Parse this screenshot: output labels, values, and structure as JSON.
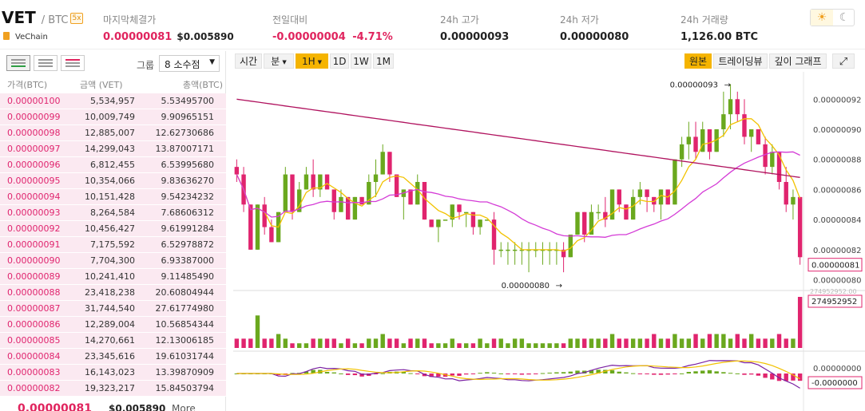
{
  "header": {
    "symbol": "VET",
    "quote": "/ BTC",
    "badge": "5x",
    "coin_name": "VeChain",
    "last_price_label": "마지막체결가",
    "last_price": "0.00000081",
    "last_price_usd": "$0.005890",
    "change_label": "전일대비",
    "change": "-0.00000004",
    "change_pct": "-4.71%",
    "high_label": "24h 고가",
    "high": "0.00000093",
    "low_label": "24h 저가",
    "low": "0.00000080",
    "volume_label": "24h 거래량",
    "volume": "1,126.00 BTC",
    "theme_light_icon": "sun-icon",
    "theme_dark_icon": "moon-icon"
  },
  "orderbook": {
    "group_label": "그룹",
    "group_value": "8 소수점",
    "col_price": "가격(BTC)",
    "col_amount": "금액 (VET)",
    "col_total": "총액(BTC)",
    "rows": [
      {
        "price": "0.00000100",
        "amount": "5,534,957",
        "total": "5.53495700"
      },
      {
        "price": "0.00000099",
        "amount": "10,009,749",
        "total": "9.90965151"
      },
      {
        "price": "0.00000098",
        "amount": "12,885,007",
        "total": "12.62730686"
      },
      {
        "price": "0.00000097",
        "amount": "14,299,043",
        "total": "13.87007171"
      },
      {
        "price": "0.00000096",
        "amount": "6,812,455",
        "total": "6.53995680"
      },
      {
        "price": "0.00000095",
        "amount": "10,354,066",
        "total": "9.83636270"
      },
      {
        "price": "0.00000094",
        "amount": "10,151,428",
        "total": "9.54234232"
      },
      {
        "price": "0.00000093",
        "amount": "8,264,584",
        "total": "7.68606312"
      },
      {
        "price": "0.00000092",
        "amount": "10,456,427",
        "total": "9.61991284"
      },
      {
        "price": "0.00000091",
        "amount": "7,175,592",
        "total": "6.52978872"
      },
      {
        "price": "0.00000090",
        "amount": "7,704,300",
        "total": "6.93387000"
      },
      {
        "price": "0.00000089",
        "amount": "10,241,410",
        "total": "9.11485490"
      },
      {
        "price": "0.00000088",
        "amount": "23,418,238",
        "total": "20.60804944"
      },
      {
        "price": "0.00000087",
        "amount": "31,744,540",
        "total": "27.61774980"
      },
      {
        "price": "0.00000086",
        "amount": "12,289,004",
        "total": "10.56854344"
      },
      {
        "price": "0.00000085",
        "amount": "14,270,661",
        "total": "12.13006185"
      },
      {
        "price": "0.00000084",
        "amount": "23,345,616",
        "total": "19.61031744"
      },
      {
        "price": "0.00000083",
        "amount": "16,143,023",
        "total": "13.39870909"
      },
      {
        "price": "0.00000082",
        "amount": "19,323,217",
        "total": "15.84503794"
      }
    ],
    "footer_price": "0.00000081",
    "footer_usd": "$0.005890",
    "more_label": "More"
  },
  "chart_toolbar": {
    "time": "시간",
    "minute": "분",
    "h1": "1H",
    "d1": "1D",
    "w1": "1W",
    "m1": "1M",
    "original": "원본",
    "tradingview": "트레이딩뷰",
    "depth": "깊이 그래프",
    "fullscreen_icon": "expand-icon"
  },
  "chart_data": {
    "type": "candlestick",
    "y_ticks": [
      "0.00000092",
      "0.00000090",
      "0.00000088",
      "0.00000086",
      "0.00000084",
      "0.00000082",
      "0.00000080"
    ],
    "ylim": [
      7.95e-07,
      9.35e-07
    ],
    "high_marker": "0.00000093",
    "low_marker": "0.00000080",
    "current_price_tag": "0.00000081",
    "volume_tag": "274952952",
    "volume_ghost_label": "274952952.00",
    "macd_tag_top": "0.00000000",
    "macd_tag_bottom": "-0.0000000",
    "candles": [
      [
        87.5,
        88,
        86.5,
        87
      ],
      [
        87,
        87.5,
        84.5,
        85
      ],
      [
        85,
        85,
        82,
        82
      ],
      [
        82,
        85,
        82,
        85
      ],
      [
        85,
        85.5,
        83,
        83.5
      ],
      [
        83.5,
        84,
        82.5,
        82.5
      ],
      [
        82.5,
        84.5,
        82.5,
        84.5
      ],
      [
        84.5,
        87.5,
        84.5,
        87
      ],
      [
        87,
        87,
        84,
        84.5
      ],
      [
        84.5,
        86.5,
        84.5,
        86
      ],
      [
        86,
        87.5,
        86,
        87
      ],
      [
        87,
        88,
        85.5,
        86
      ],
      [
        86,
        87,
        85.5,
        87
      ],
      [
        87,
        87,
        86,
        86
      ],
      [
        86,
        86,
        84,
        84.5
      ],
      [
        84.5,
        86,
        84.5,
        85.5
      ],
      [
        85.5,
        85.5,
        84,
        84
      ],
      [
        84,
        85.5,
        84,
        85.5
      ],
      [
        85.5,
        85.5,
        85,
        85
      ],
      [
        85,
        87,
        85,
        86.5
      ],
      [
        86.5,
        88,
        85.5,
        87
      ],
      [
        87,
        89,
        87,
        88.5
      ],
      [
        88.5,
        88.5,
        86.5,
        87
      ],
      [
        87,
        87,
        85.5,
        85.5
      ],
      [
        85.5,
        86,
        84,
        86
      ],
      [
        86,
        86,
        85,
        85
      ],
      [
        85,
        87,
        85,
        86.5
      ],
      [
        86.5,
        86.5,
        84,
        84
      ],
      [
        84,
        84,
        83.5,
        83.5
      ],
      [
        83.5,
        84,
        82.5,
        84
      ],
      [
        84,
        84,
        84,
        84
      ],
      [
        84,
        85,
        83.5,
        85
      ],
      [
        85,
        85,
        84,
        84.5
      ],
      [
        84.5,
        84.5,
        83.5,
        84.5
      ],
      [
        84.5,
        84.5,
        83,
        83.5
      ],
      [
        83.5,
        84,
        83,
        84
      ],
      [
        84,
        84,
        84,
        84
      ],
      [
        84,
        84.5,
        81,
        82
      ],
      [
        82,
        82.5,
        81.5,
        82
      ],
      [
        82,
        82.5,
        81,
        82
      ],
      [
        82,
        82.5,
        81,
        82
      ],
      [
        82,
        82.5,
        81,
        82
      ],
      [
        82,
        82.5,
        80.5,
        82
      ],
      [
        82,
        82.5,
        81.5,
        82
      ],
      [
        82,
        82.5,
        81,
        82
      ],
      [
        82,
        82.5,
        81,
        82
      ],
      [
        82,
        82.5,
        81,
        82
      ],
      [
        82,
        82.5,
        80.5,
        81.5
      ],
      [
        81.5,
        83,
        81.5,
        83
      ],
      [
        83,
        84.5,
        83,
        84.5
      ],
      [
        84.5,
        84.5,
        82.5,
        83
      ],
      [
        83,
        85,
        83,
        84.5
      ],
      [
        84.5,
        85,
        84,
        84.5
      ],
      [
        84.5,
        85.5,
        83.5,
        84
      ],
      [
        84,
        86,
        84,
        86
      ],
      [
        86,
        86,
        84.5,
        85
      ],
      [
        85,
        85,
        84,
        84
      ],
      [
        84,
        86,
        84,
        85.5
      ],
      [
        85.5,
        86.5,
        85,
        86
      ],
      [
        86,
        86,
        84.5,
        85.5
      ],
      [
        85.5,
        85.5,
        84.5,
        85
      ],
      [
        85,
        86,
        84,
        86
      ],
      [
        86,
        86,
        85,
        85
      ],
      [
        85,
        88,
        85,
        88
      ],
      [
        88,
        89.5,
        87.5,
        89
      ],
      [
        89,
        90.5,
        88,
        89.5
      ],
      [
        89.5,
        90.5,
        88,
        88.5
      ],
      [
        88.5,
        90.5,
        88.5,
        90
      ],
      [
        90,
        90,
        88,
        88.5
      ],
      [
        88.5,
        90,
        88.5,
        90
      ],
      [
        90,
        92.5,
        89.5,
        91
      ],
      [
        91,
        93,
        90,
        92
      ],
      [
        92,
        92.5,
        90.5,
        91
      ],
      [
        91,
        92,
        89,
        89.5
      ],
      [
        89.5,
        90,
        88.5,
        90
      ],
      [
        90,
        90,
        89,
        89
      ],
      [
        89,
        89.5,
        87,
        87.5
      ],
      [
        87.5,
        89,
        87,
        88.5
      ],
      [
        88.5,
        88.5,
        86,
        86.5
      ],
      [
        86.5,
        87.5,
        84.5,
        85
      ],
      [
        85,
        86,
        84,
        85.5
      ],
      [
        85.5,
        85.5,
        81,
        81.5
      ]
    ],
    "volume": [
      1,
      1,
      1,
      3.5,
      1,
      1,
      1.5,
      1,
      0.5,
      0.5,
      0.5,
      1,
      1,
      1,
      1,
      0.5,
      1,
      0.5,
      0.5,
      1,
      1,
      1.5,
      1,
      1,
      0.5,
      1,
      1,
      1,
      0.5,
      0.5,
      0.5,
      1,
      0.5,
      0.5,
      0.5,
      1,
      0.5,
      1,
      1,
      0.5,
      1,
      1,
      0.5,
      0.5,
      0.5,
      0.5,
      0.5,
      0.5,
      1,
      1,
      1,
      1,
      1,
      1,
      1.5,
      1,
      1,
      1,
      1,
      1,
      1.5,
      1,
      1,
      1.5,
      1,
      1,
      1.5,
      1,
      1.5,
      1.5,
      1.5,
      1,
      1.5,
      1,
      1.5,
      1,
      1,
      1,
      1.5,
      1,
      1,
      5.5
    ]
  }
}
